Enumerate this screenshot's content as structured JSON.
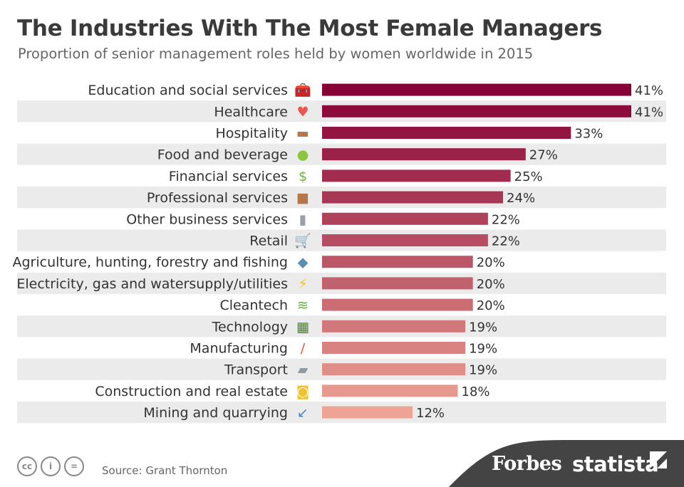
{
  "header": {
    "title": "The Industries With The Most Female Managers",
    "subtitle": "Proportion of senior management roles held by women worldwide in 2015"
  },
  "footer": {
    "source": "Source: Grant Thornton",
    "license_icons": [
      "creative-commons-icon",
      "attribution-icon",
      "no-derivatives-icon"
    ],
    "brands": [
      "Forbes",
      "statista"
    ]
  },
  "chart_data": {
    "type": "bar",
    "orientation": "horizontal",
    "categories": [
      "Education and social services",
      "Healthcare",
      "Hospitality",
      "Food and beverage",
      "Financial services",
      "Professional services",
      "Other business services",
      "Retail",
      "Agriculture, hunting, forestry and fishing",
      "Electricity, gas and watersupply/utilities",
      "Cleantech",
      "Technology",
      "Manufacturing",
      "Transport",
      "Construction and real estate",
      "Mining and quarrying"
    ],
    "values": [
      41,
      41,
      33,
      27,
      25,
      24,
      22,
      22,
      20,
      20,
      20,
      19,
      19,
      19,
      18,
      12
    ],
    "value_labels": [
      "41%",
      "41%",
      "33%",
      "27%",
      "25%",
      "24%",
      "22%",
      "22%",
      "20%",
      "20%",
      "20%",
      "19%",
      "19%",
      "19%",
      "18%",
      "12%"
    ],
    "icons": [
      "toolbox-icon",
      "heart-pulse-icon",
      "bed-icon",
      "apple-icon",
      "dollar-icon",
      "briefcase-icon",
      "suitcase-icon",
      "shopping-cart-icon",
      "fish-icon",
      "lightning-icon",
      "wind-icon",
      "chip-icon",
      "wrench-icon",
      "truck-icon",
      "tape-measure-icon",
      "shovel-icon"
    ],
    "xlim": [
      0,
      41
    ],
    "grid": false,
    "legend": "none",
    "colors": {
      "max": "#850035",
      "min": "#eda495",
      "stripe": "#ebebeb"
    }
  }
}
